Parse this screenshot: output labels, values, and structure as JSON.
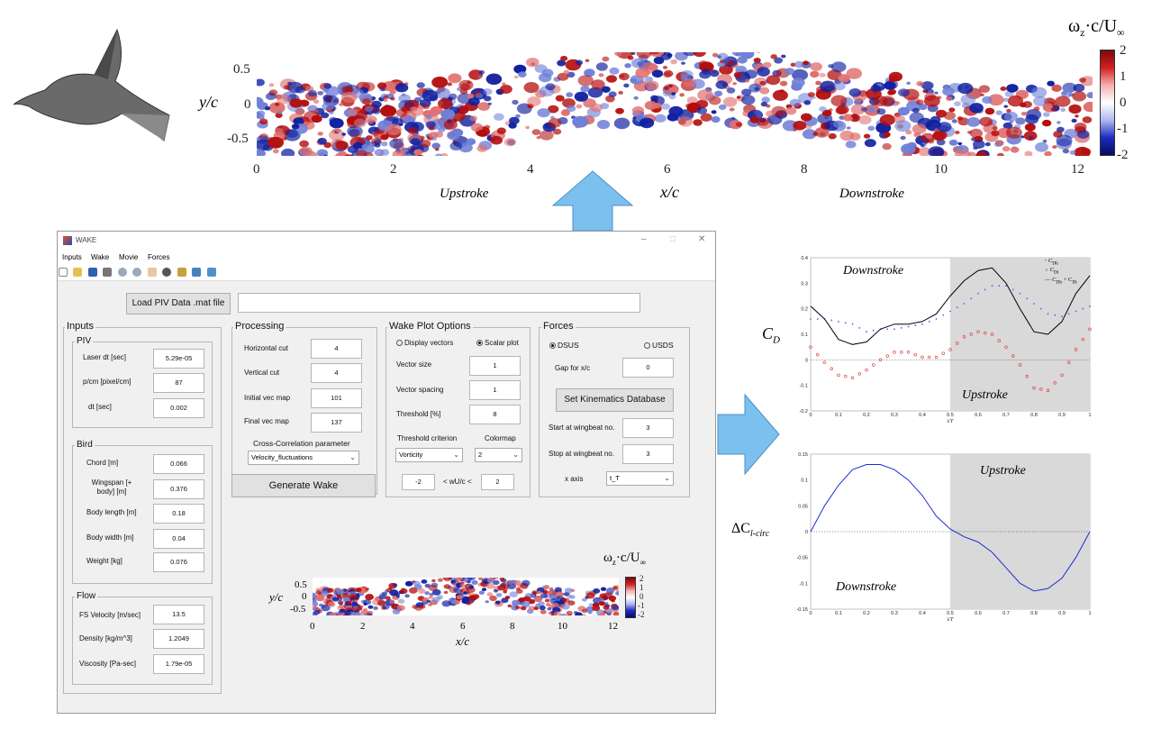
{
  "top_figure": {
    "ylabel": "y/c",
    "xlabel": "x/c",
    "yticks": [
      "0.5",
      "0",
      "-0.5"
    ],
    "xticks": [
      "0",
      "2",
      "4",
      "6",
      "8",
      "10",
      "12"
    ],
    "phase_left": "Upstroke",
    "phase_right": "Downstroke",
    "colorbar_label_main": "ω",
    "colorbar_label_sub": "z",
    "colorbar_label_tail": "·c/U",
    "colorbar_label_inf": "∞",
    "colorbar_ticks": [
      "2",
      "1",
      "0",
      "-1",
      "-2"
    ]
  },
  "window": {
    "title": "WAKE",
    "controls": {
      "minimize": "–",
      "maximize": "□",
      "close": "✕"
    },
    "menu": [
      "Inputs",
      "Wake",
      "Movie",
      "Forces"
    ],
    "load_button": "Load PIV Data .mat file",
    "file_path": "",
    "inputs": {
      "title": "Inputs",
      "piv": {
        "title": "PIV",
        "fields": [
          {
            "label": "Laser dt [sec]",
            "value": "5.29e-05"
          },
          {
            "label": "p/cm [pixel/cm]",
            "value": "87"
          },
          {
            "label": "dt [sec]",
            "value": "0.002"
          }
        ]
      },
      "bird": {
        "title": "Bird",
        "fields": [
          {
            "label": "Chord [m]",
            "value": "0.066"
          },
          {
            "label": "Wingspan [+ body] [m]",
            "value": "0.376"
          },
          {
            "label": "Body length [m]",
            "value": "0.18"
          },
          {
            "label": "Body width [m]",
            "value": "0.04"
          },
          {
            "label": "Weight [kg]",
            "value": "0.076"
          }
        ]
      },
      "flow": {
        "title": "Flow",
        "fields": [
          {
            "label": "FS Velocity [m/sec]",
            "value": "13.5"
          },
          {
            "label": "Density [kg/m^3]",
            "value": "1.2049"
          },
          {
            "label": "Viscosity [Pa-sec]",
            "value": "1.79e-05"
          }
        ]
      }
    },
    "processing": {
      "title": "Processing",
      "fields": [
        {
          "label": "Horizontal cut",
          "value": "4"
        },
        {
          "label": "Vertical cut",
          "value": "4"
        },
        {
          "label": "Initial vec map",
          "value": "101"
        },
        {
          "label": "Final vec map",
          "value": "137"
        }
      ],
      "cc_label": "Cross-Correlation parameter",
      "cc_value": "Velocity_fluctuations",
      "generate_button": "Generate Wake"
    },
    "wake_plot": {
      "title": "Wake Plot Options",
      "radio_vectors": "Display vectors",
      "radio_scalar": "Scalar plot",
      "fields": [
        {
          "label": "Vector size",
          "value": "1"
        },
        {
          "label": "Vector spacing",
          "value": "1"
        },
        {
          "label": "Threshold [%]",
          "value": "8"
        }
      ],
      "threshold_label": "Threshold criterion",
      "colormap_label": "Colormap",
      "threshold_value": "Vorticity",
      "colormap_value": "2",
      "range_min": "-2",
      "range_mid": "< wU/c <",
      "range_max": "2"
    },
    "forces": {
      "title": "Forces",
      "radio_dsus": "DSUS",
      "radio_usds": "USDS",
      "gap_label": "Gap for x/c",
      "gap_value": "0",
      "kinematics_button": "Set Kinematics Database",
      "start_label": "Start at wingbeat no.",
      "start_value": "3",
      "stop_label": "Stop at wingbeat no.",
      "stop_value": "3",
      "xaxis_label": "x axis",
      "xaxis_value": "t_T"
    },
    "mini_plot": {
      "ylabel": "y/c",
      "xlabel": "x/c",
      "yticks": [
        "0.5",
        "0",
        "-0.5"
      ],
      "xticks": [
        "0",
        "2",
        "4",
        "6",
        "8",
        "10",
        "12"
      ],
      "cb_ticks": [
        "2",
        "1",
        "0",
        "-1",
        "-2"
      ]
    }
  },
  "chart_data": [
    {
      "type": "line",
      "ylabel": "C_D",
      "xlabel": "t/T",
      "x": [
        0,
        0.05,
        0.1,
        0.15,
        0.2,
        0.25,
        0.3,
        0.35,
        0.4,
        0.45,
        0.5,
        0.55,
        0.6,
        0.65,
        0.7,
        0.75,
        0.8,
        0.85,
        0.9,
        0.95,
        1.0
      ],
      "series": [
        {
          "name": "C_Dh",
          "style": "dots-blue",
          "values": [
            0.16,
            0.16,
            0.15,
            0.14,
            0.11,
            0.12,
            0.12,
            0.13,
            0.14,
            0.16,
            0.19,
            0.22,
            0.26,
            0.29,
            0.29,
            0.26,
            0.22,
            0.18,
            0.17,
            0.19,
            0.21
          ]
        },
        {
          "name": "C_Di",
          "style": "circles-red",
          "values": [
            0.05,
            -0.01,
            -0.06,
            -0.07,
            -0.04,
            0.0,
            0.03,
            0.03,
            0.01,
            0.01,
            0.04,
            0.09,
            0.11,
            0.1,
            0.05,
            -0.02,
            -0.11,
            -0.12,
            -0.06,
            0.04,
            0.12
          ]
        },
        {
          "name": "C_Dh + C_Di",
          "style": "line-black",
          "values": [
            0.21,
            0.16,
            0.08,
            0.06,
            0.07,
            0.12,
            0.14,
            0.14,
            0.15,
            0.18,
            0.25,
            0.31,
            0.35,
            0.36,
            0.3,
            0.2,
            0.11,
            0.1,
            0.15,
            0.26,
            0.33
          ]
        }
      ],
      "xticks": [
        "0",
        "0.1",
        "0.2",
        "0.3",
        "0.4",
        "0.5",
        "0.6",
        "0.7",
        "0.8",
        "0.9",
        "1"
      ],
      "yticks": [
        "0.4",
        "0.3",
        "0.2",
        "0.1",
        "0",
        "-0.1",
        "-0.2"
      ],
      "ylim": [
        -0.2,
        0.4
      ],
      "shaded_from": 0.5,
      "annotations": [
        "Downstroke",
        "Upstroke"
      ]
    },
    {
      "type": "line",
      "ylabel": "ΔC_l-circ",
      "xlabel": "t/T",
      "x": [
        0,
        0.05,
        0.1,
        0.15,
        0.2,
        0.25,
        0.3,
        0.35,
        0.4,
        0.45,
        0.5,
        0.55,
        0.6,
        0.65,
        0.7,
        0.75,
        0.8,
        0.85,
        0.9,
        0.95,
        1.0
      ],
      "series": [
        {
          "name": "ΔC_l-circ",
          "style": "line-blue",
          "values": [
            0.0,
            0.05,
            0.09,
            0.12,
            0.13,
            0.13,
            0.12,
            0.1,
            0.07,
            0.03,
            0.005,
            -0.01,
            -0.02,
            -0.04,
            -0.07,
            -0.1,
            -0.115,
            -0.11,
            -0.09,
            -0.05,
            0.0
          ]
        }
      ],
      "xticks": [
        "0",
        "0.1",
        "0.2",
        "0.3",
        "0.4",
        "0.5",
        "0.6",
        "0.7",
        "0.8",
        "0.9",
        "1"
      ],
      "yticks": [
        "0.15",
        "0.1",
        "0.05",
        "0",
        "-0.05",
        "-0.1",
        "-0.15"
      ],
      "ylim": [
        -0.15,
        0.15
      ],
      "shaded_from": 0.5,
      "annotations": [
        "Upstroke",
        "Downstroke"
      ]
    }
  ],
  "legend_labels": {
    "c_dh": "C",
    "c_dh_sub": "Dh",
    "c_di": "C",
    "c_di_sub": "Di",
    "sum": "C",
    "sum_sub": "Dh",
    "sum_plus": " + C",
    "sum_sub2": "Di"
  },
  "axis_labels": {
    "cd_main": "C",
    "cd_sub": "D",
    "cl_delta": "ΔC",
    "cl_sub": "l-circ"
  },
  "colors": {
    "pos": "#b40c0c",
    "neg": "#1020a0",
    "arrow": "#7cc0f0",
    "shade": "#d9d9d9"
  }
}
